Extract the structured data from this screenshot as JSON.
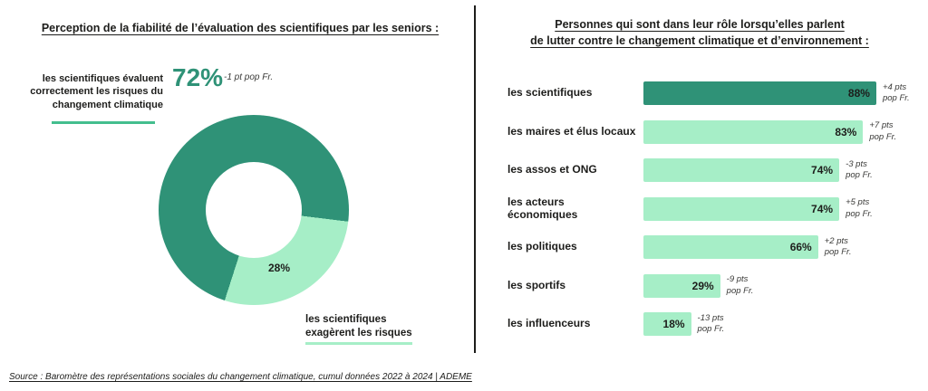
{
  "colors": {
    "dark_teal": "#2F9277",
    "light_mint": "#A6EEC7",
    "accent_underline_green": "#43BE8E",
    "text_dark": "#1D1D1B"
  },
  "source_note": "Source : Baromètre des représentations sociales du changement climatique, cumul données 2022 à 2024 | ADEME",
  "chart_data": [
    {
      "type": "pie",
      "variant": "donut",
      "title": "Perception de la fiabilité de l’évaluation des scientifiques par les seniors :",
      "start_angle_deg": 97,
      "slices": [
        {
          "label": "les scientifiques évaluent correctement les risques du changement climatique",
          "value": 72,
          "display": "72%",
          "delta": "-1 pt pop Fr.",
          "color": "#2F9277"
        },
        {
          "label": "les scientifiques exagèrent les risques",
          "value": 28,
          "display": "28%",
          "color": "#A6EEC7"
        }
      ]
    },
    {
      "type": "bar",
      "orientation": "horizontal",
      "title": "Personnes qui sont dans leur rôle lorsqu’elles parlent de lutter contre le changement climatique et d’environnement :",
      "title_lines": [
        "Personnes qui sont dans leur rôle lorsqu’elles parlent",
        "de lutter contre le changement climatique et d’environnement :"
      ],
      "xlim": [
        0,
        100
      ],
      "legend": "off",
      "grid": "off",
      "rows": [
        {
          "label": "les scientifiques",
          "value": 88,
          "display": "88%",
          "delta_line1": "+4 pts",
          "delta_line2": "pop Fr.",
          "color": "#2F9277"
        },
        {
          "label": "les maires et élus locaux",
          "value": 83,
          "display": "83%",
          "delta_line1": "+7 pts",
          "delta_line2": "pop Fr.",
          "color": "#A6EEC7"
        },
        {
          "label": "les assos et ONG",
          "value": 74,
          "display": "74%",
          "delta_line1": "-3 pts",
          "delta_line2": "pop Fr.",
          "color": "#A6EEC7"
        },
        {
          "label": "les acteurs économiques",
          "value": 74,
          "display": "74%",
          "delta_line1": "+5 pts",
          "delta_line2": "pop Fr.",
          "color": "#A6EEC7"
        },
        {
          "label": "les politiques",
          "value": 66,
          "display": "66%",
          "delta_line1": "+2 pts",
          "delta_line2": "pop Fr.",
          "color": "#A6EEC7"
        },
        {
          "label": "les sportifs",
          "value": 29,
          "display": "29%",
          "delta_line1": "-9 pts",
          "delta_line2": "pop Fr.",
          "color": "#A6EEC7"
        },
        {
          "label": "les influenceurs",
          "value": 18,
          "display": "18%",
          "delta_line1": "-13 pts",
          "delta_line2": "pop Fr.",
          "color": "#A6EEC7"
        }
      ]
    }
  ]
}
